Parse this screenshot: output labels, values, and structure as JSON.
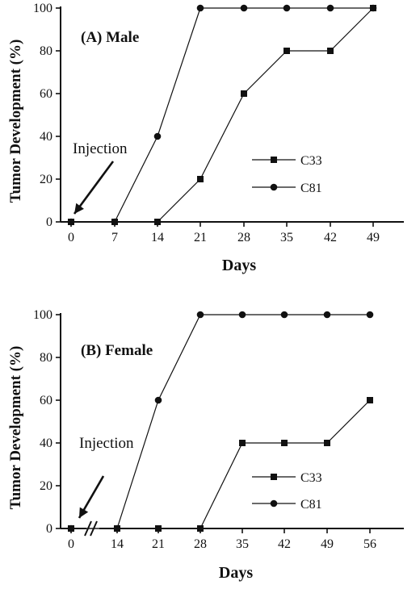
{
  "chart_data": [
    {
      "type": "line",
      "panel_title": "(A) Male",
      "ylabel": "Tumor Development (%)",
      "xlabel": "Days",
      "categories": [
        0,
        7,
        14,
        21,
        28,
        35,
        42,
        49
      ],
      "ylim": [
        0,
        100
      ],
      "yticks": [
        0,
        20,
        40,
        60,
        80,
        100
      ],
      "series": [
        {
          "name": "C33",
          "marker": "square",
          "x": [
            0,
            7,
            14,
            21,
            28,
            35,
            42,
            49
          ],
          "values": [
            0,
            0,
            0,
            20,
            60,
            80,
            80,
            100
          ]
        },
        {
          "name": "C81",
          "marker": "circle",
          "x": [
            0,
            7,
            14,
            21,
            28,
            35,
            42,
            49
          ],
          "values": [
            0,
            0,
            40,
            100,
            100,
            100,
            100,
            100
          ]
        }
      ],
      "annotation": "Injection",
      "grid": false
    },
    {
      "type": "line",
      "panel_title": "(B) Female",
      "ylabel": "Tumor Development (%)",
      "xlabel": "Days",
      "categories": [
        0,
        14,
        21,
        28,
        35,
        42,
        49,
        56
      ],
      "axis_break": true,
      "ylim": [
        0,
        100
      ],
      "yticks": [
        0,
        20,
        40,
        60,
        80,
        100
      ],
      "series": [
        {
          "name": "C33",
          "marker": "square",
          "x": [
            0,
            14,
            21,
            28,
            35,
            42,
            49,
            56
          ],
          "values": [
            0,
            0,
            0,
            0,
            40,
            40,
            40,
            60
          ]
        },
        {
          "name": "C81",
          "marker": "circle",
          "x": [
            0,
            14,
            21,
            28,
            35,
            42,
            49,
            56
          ],
          "values": [
            0,
            0,
            60,
            100,
            100,
            100,
            100,
            100
          ]
        }
      ],
      "annotation": "Injection",
      "grid": false
    }
  ]
}
